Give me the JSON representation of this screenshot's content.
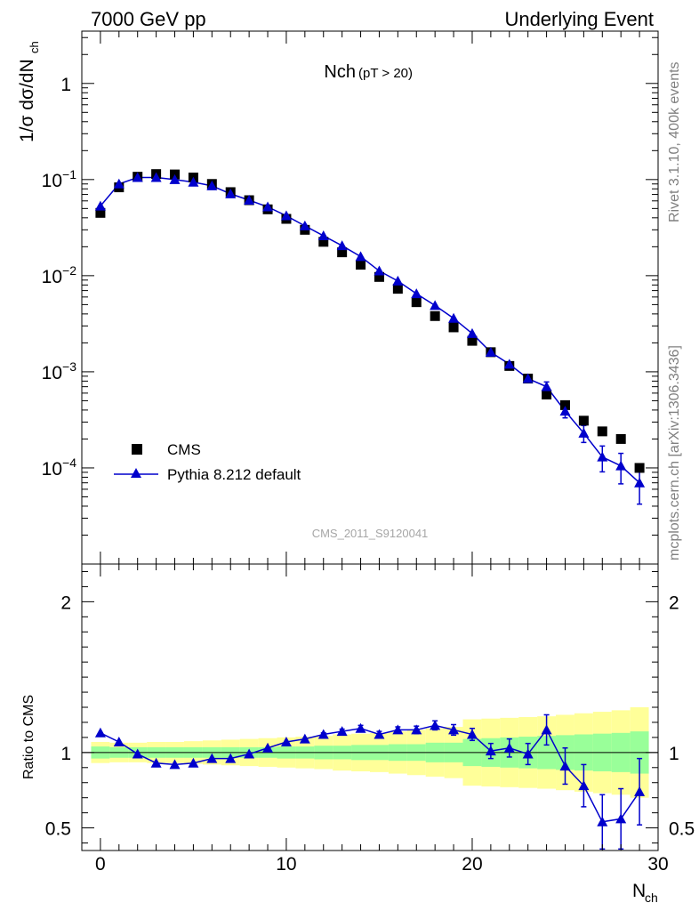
{
  "header": {
    "left": "7000 GeV pp",
    "right": "Underlying Event"
  },
  "side_labels": {
    "rivet": "Rivet 3.1.10,  400k events",
    "mcplots": "mcplots.cern.ch [arXiv:1306.3436]"
  },
  "chart_data": [
    {
      "type": "scatter",
      "title": "Nch",
      "title_sub": "(pT > 20)",
      "watermark": "CMS_2011_S9120041",
      "ylabel_main": "1/σ dσ/dN",
      "ylabel_sub": "ch",
      "yscale": "log",
      "xlim": [
        -1,
        30
      ],
      "ylim": [
        1e-05,
        3.5
      ],
      "yticks": [
        {
          "value": 1,
          "base": "1",
          "exp": ""
        },
        {
          "value": 0.1,
          "base": "10",
          "exp": "−1"
        },
        {
          "value": 0.01,
          "base": "10",
          "exp": "−2"
        },
        {
          "value": 0.001,
          "base": "10",
          "exp": "−3"
        },
        {
          "value": 0.0001,
          "base": "10",
          "exp": "−4"
        }
      ],
      "legend_position": "bottom-left",
      "series": [
        {
          "name": "CMS",
          "color": "#000000",
          "marker": "square",
          "x": [
            0,
            1,
            2,
            3,
            4,
            5,
            6,
            7,
            8,
            9,
            10,
            11,
            12,
            13,
            14,
            15,
            16,
            17,
            18,
            19,
            20,
            21,
            22,
            23,
            24,
            25,
            26,
            27,
            28,
            29
          ],
          "y": [
            0.045,
            0.083,
            0.107,
            0.114,
            0.113,
            0.105,
            0.09,
            0.074,
            0.061,
            0.049,
            0.039,
            0.03,
            0.0225,
            0.0175,
            0.013,
            0.0097,
            0.0073,
            0.0053,
            0.0038,
            0.0029,
            0.0021,
            0.0016,
            0.00115,
            0.00085,
            0.00058,
            0.00045,
            0.00031,
            0.00024,
            0.0002,
            0.0001
          ]
        },
        {
          "name": "Pythia 8.212 default",
          "color": "#0000cc",
          "marker": "triangle",
          "x": [
            0,
            1,
            2,
            3,
            4,
            5,
            6,
            7,
            8,
            9,
            10,
            11,
            12,
            13,
            14,
            15,
            16,
            17,
            18,
            19,
            20,
            21,
            22,
            23,
            24,
            25,
            26,
            27,
            28,
            29
          ],
          "y": [
            0.053,
            0.09,
            0.105,
            0.105,
            0.1,
            0.094,
            0.086,
            0.071,
            0.061,
            0.052,
            0.042,
            0.033,
            0.026,
            0.0205,
            0.0158,
            0.0112,
            0.0088,
            0.0065,
            0.0049,
            0.0036,
            0.0025,
            0.0016,
            0.0012,
            0.00085,
            0.0007,
            0.00039,
            0.00023,
            0.00013,
            0.000105,
            7e-05
          ],
          "yerr_rel": [
            0,
            0,
            0,
            0,
            0,
            0,
            0,
            0,
            0,
            0,
            0,
            0,
            0,
            0,
            0,
            0,
            0,
            0,
            0,
            0,
            0,
            0,
            0,
            0,
            0.12,
            0.15,
            0.2,
            0.3,
            0.35,
            0.4
          ]
        }
      ]
    },
    {
      "type": "line",
      "ylabel": "Ratio to CMS",
      "xlabel_main": "N",
      "xlabel_sub": "ch",
      "xlim": [
        -1,
        30
      ],
      "ylim": [
        0.35,
        2.25
      ],
      "xticks": [
        0,
        10,
        20,
        30
      ],
      "yticks": [
        0.5,
        1,
        2
      ],
      "band_inner_color": "#99ff99",
      "band_outer_color": "#ffff99",
      "band": {
        "edges": [
          -0.5,
          0.5,
          1.5,
          2.5,
          3.5,
          4.5,
          5.5,
          6.5,
          7.5,
          8.5,
          9.5,
          10.5,
          11.5,
          12.5,
          13.5,
          14.5,
          15.5,
          16.5,
          17.5,
          18.5,
          19.5,
          20.5,
          21.5,
          22.5,
          23.5,
          24.5,
          25.5,
          26.5,
          27.5,
          28.5,
          29.5
        ],
        "inner": [
          0.04,
          0.035,
          0.035,
          0.035,
          0.035,
          0.035,
          0.035,
          0.035,
          0.035,
          0.035,
          0.04,
          0.04,
          0.045,
          0.045,
          0.05,
          0.05,
          0.055,
          0.055,
          0.065,
          0.065,
          0.09,
          0.095,
          0.1,
          0.105,
          0.11,
          0.115,
          0.12,
          0.125,
          0.13,
          0.14
        ],
        "outer": [
          0.07,
          0.065,
          0.065,
          0.07,
          0.07,
          0.075,
          0.08,
          0.085,
          0.09,
          0.095,
          0.1,
          0.105,
          0.11,
          0.12,
          0.125,
          0.13,
          0.14,
          0.15,
          0.16,
          0.17,
          0.22,
          0.225,
          0.23,
          0.235,
          0.24,
          0.25,
          0.26,
          0.27,
          0.28,
          0.3
        ]
      },
      "series": [
        {
          "name": "Pythia 8.212 default",
          "color": "#0000cc",
          "x": [
            0,
            1,
            2,
            3,
            4,
            5,
            6,
            7,
            8,
            9,
            10,
            11,
            12,
            13,
            14,
            15,
            16,
            17,
            18,
            19,
            20,
            21,
            22,
            23,
            24,
            25,
            26,
            27,
            28,
            29
          ],
          "y": [
            1.13,
            1.07,
            0.99,
            0.93,
            0.92,
            0.93,
            0.96,
            0.96,
            0.99,
            1.03,
            1.07,
            1.09,
            1.12,
            1.14,
            1.16,
            1.12,
            1.15,
            1.15,
            1.18,
            1.15,
            1.12,
            1.01,
            1.03,
            0.99,
            1.15,
            0.91,
            0.78,
            0.54,
            0.56,
            0.74
          ],
          "yerr": [
            0,
            0,
            0,
            0,
            0,
            0,
            0,
            0,
            0,
            0,
            0,
            0,
            0.01,
            0.015,
            0.02,
            0.02,
            0.02,
            0.025,
            0.03,
            0.035,
            0.04,
            0.05,
            0.06,
            0.07,
            0.1,
            0.12,
            0.14,
            0.18,
            0.2,
            0.22
          ]
        }
      ]
    }
  ]
}
